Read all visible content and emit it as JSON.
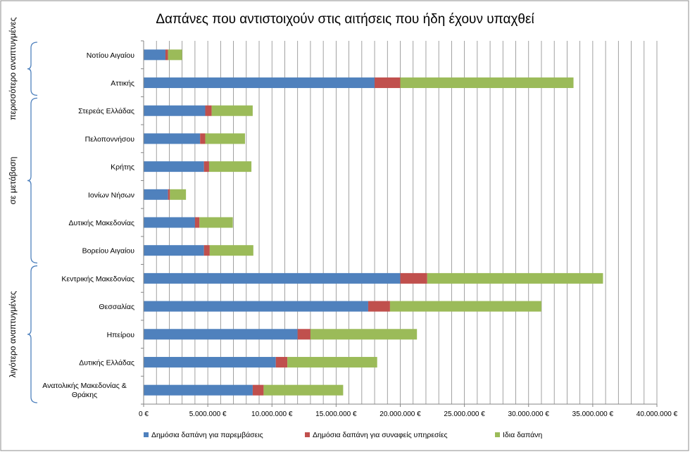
{
  "chart_data": {
    "type": "bar",
    "orientation": "horizontal",
    "stacked": true,
    "title": "Δαπάνες που αντιστοιχούν στις αιτήσεις που ήδη έχουν υπαχθεί",
    "categories": [
      "Νοτίου Αιγαίου",
      "Αττικής",
      "Στερεάς Ελλάδας",
      "Πελοποννήσου",
      "Κρήτης",
      "Ιονίων Νήσων",
      "Δυτικής Μακεδονίας",
      "Βορείου Αιγαίου",
      "Κεντρικής Μακεδονίας",
      "Θεσσαλίας",
      "Ηπείρου",
      "Δυτικής Ελλάδας",
      "Ανατολικής Μακεδονίας & Θράκης"
    ],
    "series": [
      {
        "name": "Δημόσια δαπάνη για παρεμβάσεις",
        "color": "#4F81BD",
        "values": [
          1700000,
          18000000,
          4800000,
          4400000,
          4700000,
          1900000,
          4000000,
          4700000,
          20000000,
          17500000,
          12000000,
          10300000,
          8500000
        ]
      },
      {
        "name": "Δημόσια δαπάνη για συναφείς υπηρεσίες",
        "color": "#C0504D",
        "values": [
          200000,
          2000000,
          500000,
          400000,
          400000,
          150000,
          350000,
          450000,
          2100000,
          1700000,
          1000000,
          900000,
          850000
        ]
      },
      {
        "name": "Ιδια δαπάνη",
        "color": "#9BBB59",
        "values": [
          1100000,
          13500000,
          3200000,
          3100000,
          3300000,
          1250000,
          2600000,
          3400000,
          13700000,
          11800000,
          8300000,
          7000000,
          6200000
        ]
      }
    ],
    "xlim": [
      0,
      40000000
    ],
    "xticks": [
      "0 €",
      "5.000.000 €",
      "10.000.000 €",
      "15.000.000 €",
      "20.000.000 €",
      "25.000.000 €",
      "30.000.000 €",
      "35.000.000 €",
      "40.000.000 €"
    ],
    "grid": true,
    "legend_position": "bottom",
    "groups": [
      {
        "label": "περισσότερο αναπτυγμένες",
        "categories": [
          "Νοτίου Αιγαίου",
          "Αττικής"
        ]
      },
      {
        "label": "σε μετάβαση",
        "categories": [
          "Στερεάς Ελλάδας",
          "Πελοποννήσου",
          "Κρήτης",
          "Ιονίων Νήσων",
          "Δυτικής Μακεδονίας",
          "Βορείου Αιγαίου"
        ]
      },
      {
        "label": "λιγότερο αναπτυγμένες",
        "categories": [
          "Κεντρικής Μακεδονίας",
          "Θεσσαλίας",
          "Ηπείρου",
          "Δυτικής Ελλάδας",
          "Ανατολικής Μακεδονίας & Θράκης"
        ]
      }
    ]
  }
}
